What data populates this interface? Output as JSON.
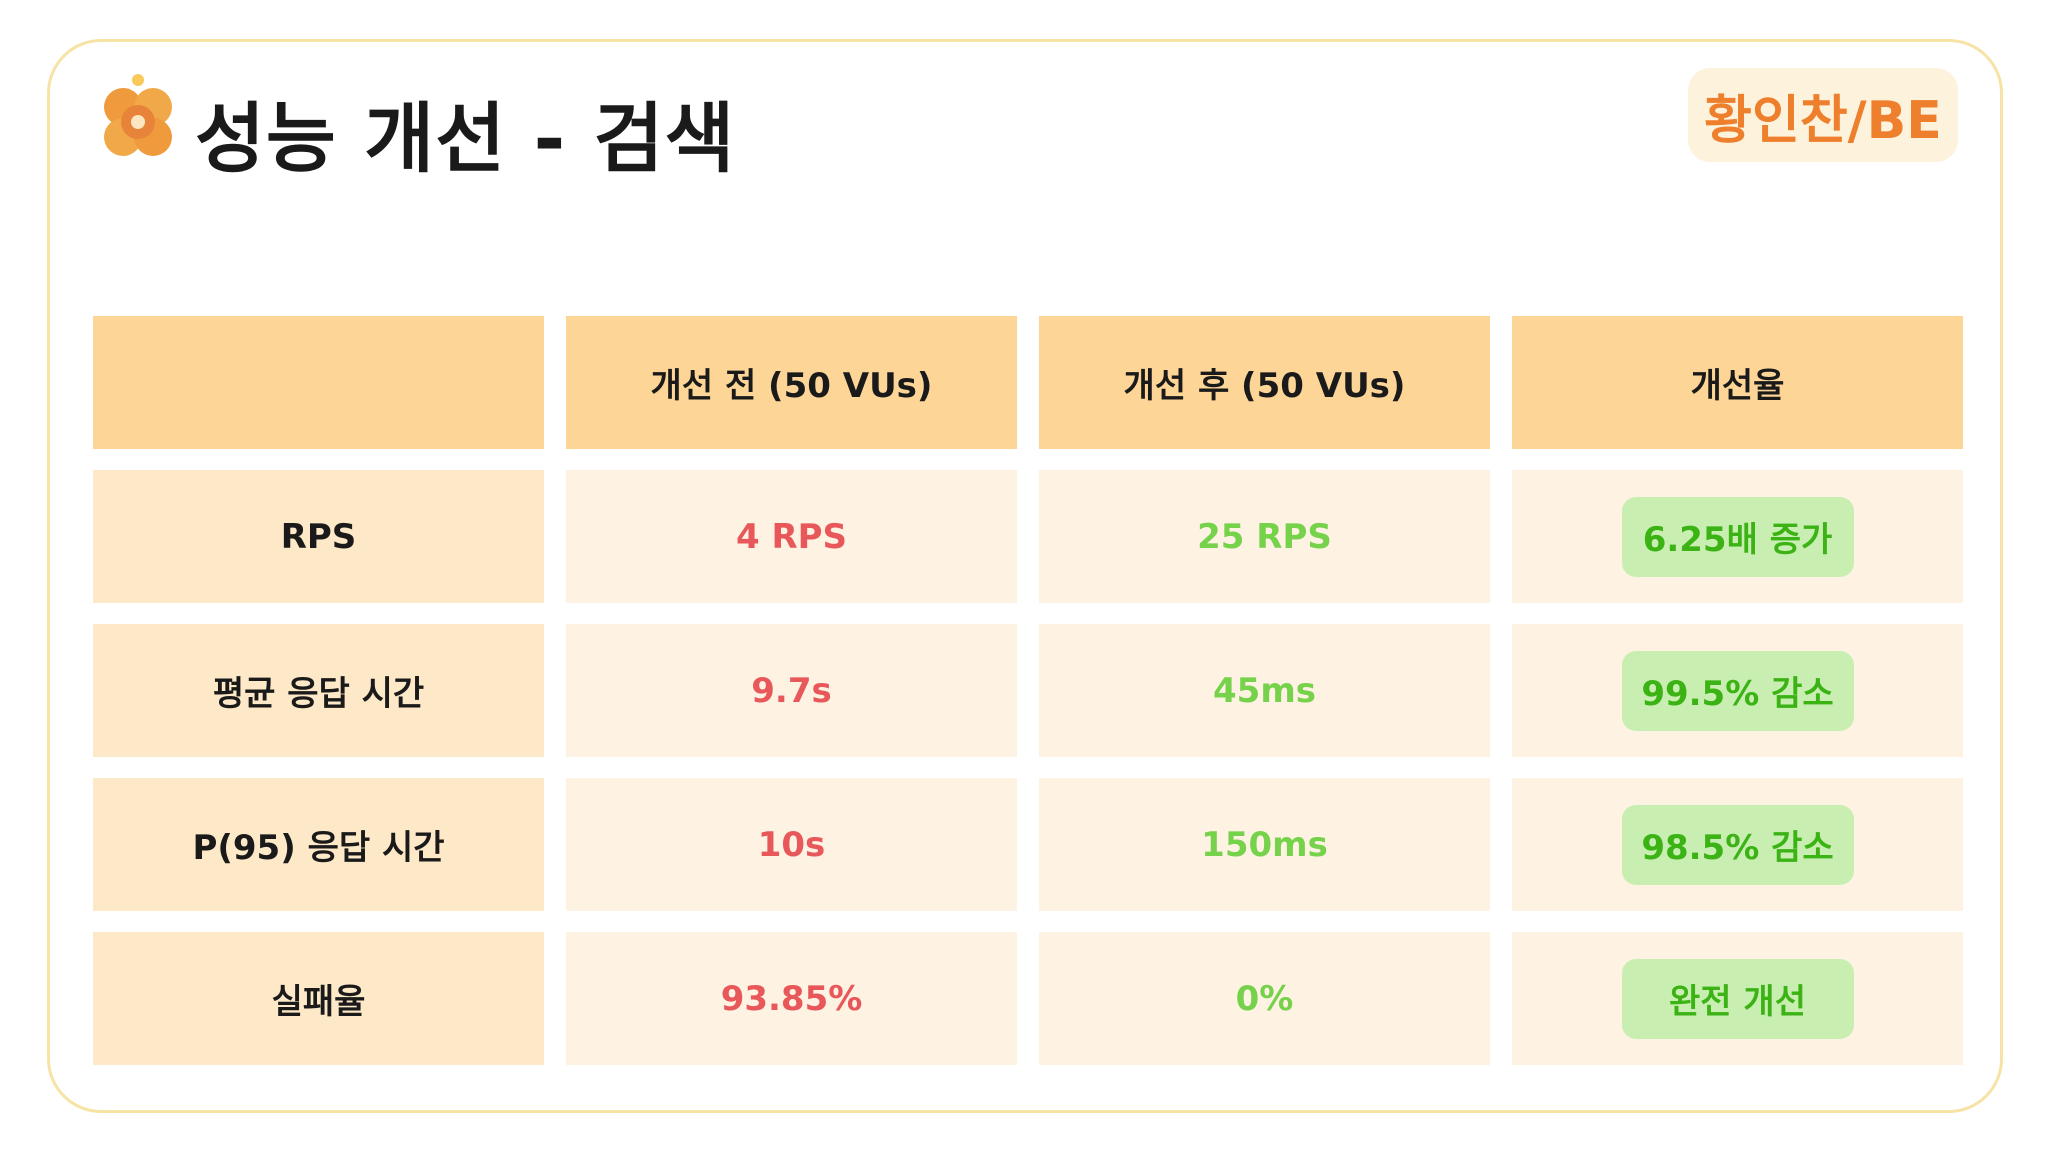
{
  "slide": {
    "title": "성능 개선 - 검색",
    "author": "황인찬/BE"
  },
  "table": {
    "headers": [
      "",
      "개선 전 (50 VUs)",
      "개선 후 (50 VUs)",
      "개선율"
    ],
    "rows": [
      {
        "label": "RPS",
        "before": "4 RPS",
        "after": "25 RPS",
        "improvement": "6.25배 증가"
      },
      {
        "label": "평균 응답 시간",
        "before": "9.7s",
        "after": "45ms",
        "improvement": "99.5% 감소"
      },
      {
        "label": "P(95) 응답 시간",
        "before": "10s",
        "after": "150ms",
        "improvement": "98.5% 감소"
      },
      {
        "label": "실패율",
        "before": "93.85%",
        "after": "0%",
        "improvement": "완전 개선"
      }
    ]
  },
  "colors": {
    "header_bg": "#fdd597",
    "label_bg": "#fde8c8",
    "body_bg": "#fef2e2",
    "before_text": "#e8575a",
    "after_text": "#76d14b",
    "improvement_pill_bg": "#c9eeb2",
    "improvement_text": "#3cb315",
    "author_text": "#ee7f2d",
    "border": "#f7e3a6"
  },
  "icons": {
    "logo": "orange-flower-logo-icon"
  }
}
